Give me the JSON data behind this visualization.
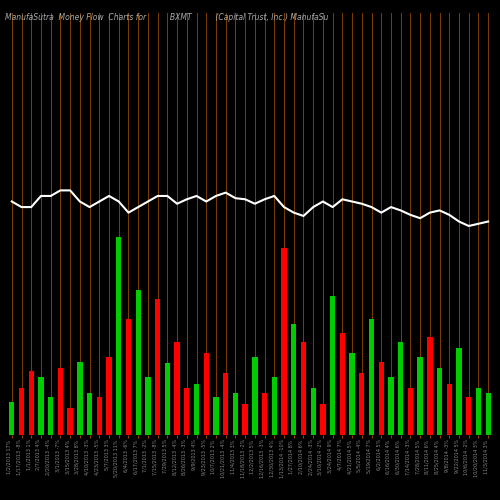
{
  "title": "ManufaSutra  Money Flow  Charts for          BXMT          (Capital Trust, Inc.) ManufaSu",
  "bg_color": "#000000",
  "bar_colors": [
    "#00cc00",
    "#ff0000",
    "#ff0000",
    "#00cc00",
    "#00cc00",
    "#ff0000",
    "#ff0000",
    "#00cc00",
    "#00cc00",
    "#ff0000",
    "#ff0000",
    "#00cc00",
    "#ff0000",
    "#00cc00",
    "#00cc00",
    "#ff0000",
    "#00cc00",
    "#ff0000",
    "#ff0000",
    "#00cc00",
    "#ff0000",
    "#00cc00",
    "#ff0000",
    "#00cc00",
    "#ff0000",
    "#00cc00",
    "#ff0000",
    "#00cc00",
    "#ff0000",
    "#00cc00",
    "#ff0000",
    "#00cc00",
    "#ff0000",
    "#00cc00",
    "#ff0000",
    "#00cc00",
    "#ff0000",
    "#00cc00",
    "#ff0000",
    "#00cc00",
    "#00cc00",
    "#ff0000",
    "#00cc00",
    "#ff0000",
    "#00cc00",
    "#ff0000",
    "#00cc00",
    "#ff0000",
    "#00cc00",
    "#00cc00"
  ],
  "bar_heights": [
    30,
    42,
    58,
    52,
    34,
    60,
    24,
    66,
    38,
    34,
    70,
    178,
    104,
    130,
    52,
    122,
    65,
    84,
    42,
    46,
    74,
    34,
    56,
    38,
    28,
    70,
    38,
    52,
    168,
    100,
    84,
    42,
    28,
    125,
    92,
    74,
    56,
    104,
    66,
    52,
    84,
    42,
    70,
    88,
    60,
    46,
    78,
    34,
    42,
    38
  ],
  "line_y": [
    210,
    205,
    205,
    215,
    215,
    220,
    220,
    210,
    205,
    210,
    215,
    210,
    200,
    205,
    210,
    215,
    215,
    208,
    212,
    215,
    210,
    215,
    218,
    213,
    212,
    208,
    212,
    215,
    205,
    200,
    197,
    205,
    210,
    205,
    212,
    210,
    208,
    205,
    200,
    205,
    202,
    198,
    195,
    200,
    202,
    198,
    192,
    188,
    190,
    192
  ],
  "vline_color": "#8B4500",
  "line_color": "#ffffff",
  "tick_label_color": "#888888",
  "title_color": "#aaaaaa",
  "title_fontsize": 5.5,
  "tick_fontsize": 3.5,
  "ylim_max": 380,
  "tick_labels": [
    "1/2/2013 17%",
    "1/17/2013 -8%",
    "1/1/2013 1%",
    "2/7/2013 4%",
    "2/20/2013 -4%",
    "3/1/2013 -7%",
    "3/15/2013 4%",
    "3/28/2013 8%",
    "4/10/2013 -3%",
    "4/23/2013 -5%",
    "5/7/2013 3%",
    "5/20/2013 11%",
    "6/4/2013 -6%",
    "6/17/2013 7%",
    "7/1/2013 -2%",
    "7/15/2013 -8%",
    "7/29/2013 5%",
    "8/12/2013 -4%",
    "8/26/2013 -3%",
    "9/9/2013 4%",
    "9/23/2013 -5%",
    "10/7/2013 2%",
    "10/21/2013 -4%",
    "11/4/2013 3%",
    "11/18/2013 -2%",
    "12/2/2013 5%",
    "12/16/2013 -3%",
    "12/30/2013 4%",
    "1/13/2014 -10%",
    "1/27/2014 8%",
    "2/10/2014 6%",
    "2/24/2014 -3%",
    "3/10/2014 -2%",
    "3/24/2014 9%",
    "4/7/2014 7%",
    "4/21/2014 5%",
    "5/5/2014 -4%",
    "5/19/2014 7%",
    "6/2/2014 5%",
    "6/16/2014 4%",
    "6/30/2014 6%",
    "7/14/2014 -3%",
    "7/28/2014 5%",
    "8/11/2014 6%",
    "8/25/2014 4%",
    "9/8/2014 -3%",
    "9/22/2014 5%",
    "10/6/2014 -2%",
    "10/20/2014 3%",
    "11/3/2014 3%"
  ]
}
